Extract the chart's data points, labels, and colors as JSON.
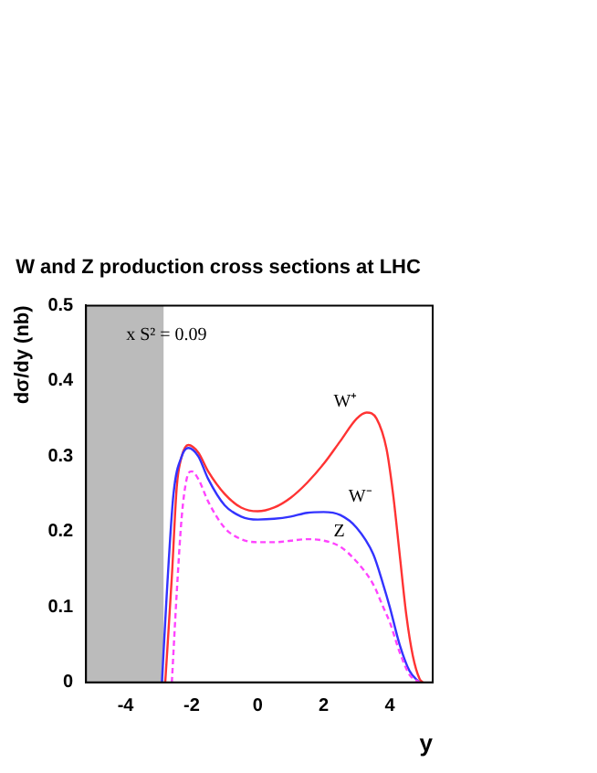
{
  "chart_data": {
    "type": "line",
    "title": "W and Z production cross sections at LHC",
    "xlabel": "y",
    "ylabel": "dσ/dy (nb)",
    "xlim": [
      -5.2,
      5.3
    ],
    "xticks": [
      -4,
      -2,
      0,
      2,
      4
    ],
    "ylim": [
      0,
      0.5
    ],
    "yticks": [
      0,
      0.1,
      0.2,
      0.3,
      0.4,
      0.5
    ],
    "grid": false,
    "legend": false,
    "marker": "none",
    "annotations": [
      "x S² = 0.09"
    ],
    "bands": [
      {
        "axis": "x",
        "from": -5.2,
        "to": -2.85,
        "color": "#bbbbbb"
      }
    ],
    "series": [
      {
        "name": "W⁺",
        "color": "#ff3333",
        "line_style": "solid",
        "x": [
          -2.8,
          -2.6,
          -2.45,
          -2.3,
          -2.1,
          -1.8,
          -1.5,
          -1,
          -0.5,
          0,
          0.5,
          1,
          1.5,
          2,
          2.5,
          3,
          3.3,
          3.6,
          3.9,
          4.1,
          4.3,
          4.5,
          4.7,
          4.9,
          5.0
        ],
        "values": [
          0,
          0.14,
          0.26,
          0.3,
          0.315,
          0.305,
          0.28,
          0.25,
          0.232,
          0.227,
          0.232,
          0.245,
          0.265,
          0.29,
          0.32,
          0.35,
          0.358,
          0.35,
          0.31,
          0.25,
          0.17,
          0.09,
          0.035,
          0.005,
          0
        ]
      },
      {
        "name": "W⁻",
        "color": "#3333ff",
        "line_style": "solid",
        "x": [
          -2.9,
          -2.75,
          -2.55,
          -2.3,
          -2.1,
          -1.8,
          -1.5,
          -1,
          -0.5,
          0,
          0.5,
          1,
          1.5,
          2,
          2.5,
          3,
          3.5,
          3.8,
          4,
          4.3,
          4.6,
          4.9
        ],
        "values": [
          0,
          0.12,
          0.25,
          0.3,
          0.311,
          0.3,
          0.27,
          0.235,
          0.22,
          0.216,
          0.217,
          0.22,
          0.225,
          0.226,
          0.222,
          0.205,
          0.17,
          0.13,
          0.1,
          0.05,
          0.015,
          0
        ]
      },
      {
        "name": "Z",
        "color": "#ff44ff",
        "line_style": "dashed",
        "x": [
          -2.6,
          -2.45,
          -2.3,
          -2.15,
          -2,
          -1.8,
          -1.5,
          -1,
          -0.5,
          0,
          0.5,
          1,
          1.5,
          2,
          2.5,
          3,
          3.5,
          3.8,
          4,
          4.3,
          4.6,
          4.9
        ],
        "values": [
          0,
          0.12,
          0.22,
          0.27,
          0.28,
          0.27,
          0.24,
          0.205,
          0.19,
          0.186,
          0.186,
          0.188,
          0.19,
          0.188,
          0.18,
          0.16,
          0.13,
          0.1,
          0.08,
          0.04,
          0.01,
          0
        ]
      }
    ]
  }
}
